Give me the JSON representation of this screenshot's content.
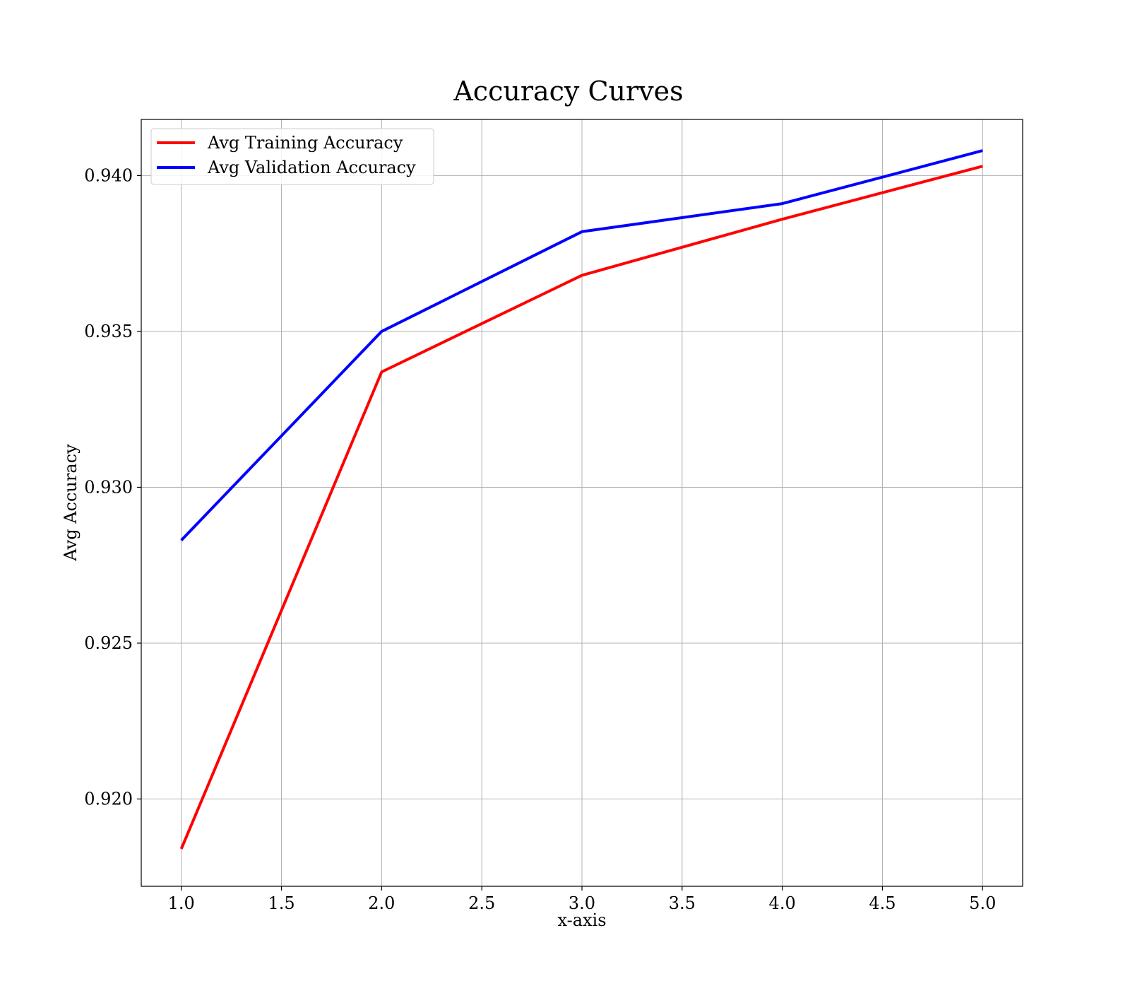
{
  "chart_data": {
    "type": "line",
    "title": "Accuracy Curves",
    "xlabel": "x-axis",
    "ylabel": "Avg Accuracy",
    "x": [
      1.0,
      2.0,
      3.0,
      4.0,
      5.0
    ],
    "xlim": [
      0.8,
      5.2
    ],
    "ylim": [
      0.9172,
      0.9418
    ],
    "x_ticks": [
      "1.0",
      "1.5",
      "2.0",
      "2.5",
      "3.0",
      "3.5",
      "4.0",
      "4.5",
      "5.0"
    ],
    "y_ticks": [
      "0.920",
      "0.925",
      "0.930",
      "0.935",
      "0.940"
    ],
    "grid": true,
    "legend_position": "top-left",
    "series": [
      {
        "name": "Avg Training Accuracy",
        "color": "#ff0000",
        "values": [
          0.9184,
          0.9337,
          0.9368,
          0.9386,
          0.9403
        ]
      },
      {
        "name": "Avg Validation Accuracy",
        "color": "#0000ff",
        "values": [
          0.9283,
          0.935,
          0.9382,
          0.9391,
          0.9408
        ]
      }
    ]
  }
}
